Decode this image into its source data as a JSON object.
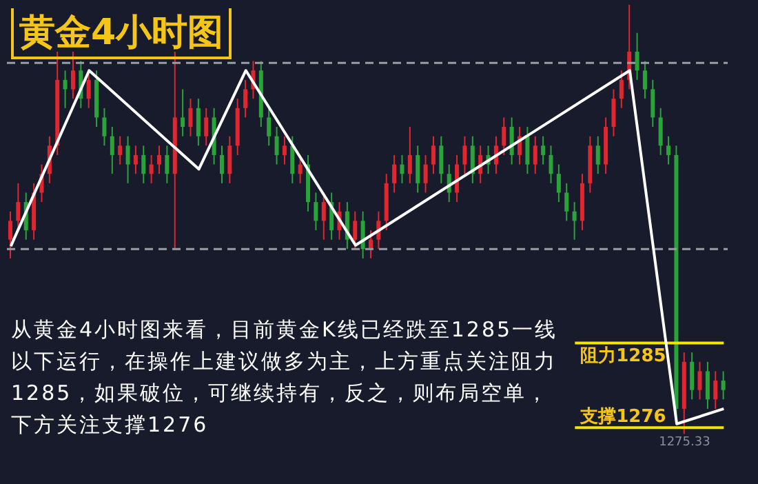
{
  "chart_data": {
    "type": "candlestick",
    "title": "黄金4小时图",
    "categories": [
      null,
      null,
      null,
      null,
      null,
      null,
      null,
      null,
      null,
      null,
      null,
      null,
      null,
      null,
      null,
      null,
      null,
      null,
      null,
      null,
      null,
      null,
      null,
      null,
      null,
      null,
      null,
      null,
      null,
      null,
      null,
      null,
      null,
      null,
      null,
      null,
      null,
      null,
      null,
      null,
      null,
      null,
      null,
      null,
      null,
      null,
      null,
      null,
      null,
      null,
      null,
      null,
      null,
      null,
      null,
      null,
      null,
      null,
      null,
      null,
      null,
      null,
      null,
      null,
      null,
      null,
      null,
      null,
      null,
      null,
      null,
      null,
      null,
      null,
      null,
      null,
      null,
      null,
      null,
      null,
      null,
      null,
      null,
      null,
      null,
      null,
      null,
      null,
      null,
      null,
      null,
      null
    ],
    "ohlc": [
      [
        1296,
        1299,
        1294,
        1298
      ],
      [
        1298,
        1302,
        1297,
        1300
      ],
      [
        1300,
        1301,
        1296,
        1297
      ],
      [
        1297,
        1302,
        1296,
        1301
      ],
      [
        1301,
        1304,
        1300,
        1303
      ],
      [
        1303,
        1307,
        1302,
        1306
      ],
      [
        1306,
        1316,
        1305,
        1313
      ],
      [
        1313,
        1314,
        1310,
        1312
      ],
      [
        1312,
        1316,
        1311,
        1314
      ],
      [
        1314,
        1315,
        1310,
        1311
      ],
      [
        1311,
        1314,
        1310,
        1313
      ],
      [
        1313,
        1314,
        1308,
        1309
      ],
      [
        1309,
        1310,
        1306,
        1307
      ],
      [
        1307,
        1308,
        1303,
        1305
      ],
      [
        1305,
        1307,
        1304,
        1306
      ],
      [
        1306,
        1307,
        1302,
        1304
      ],
      [
        1304,
        1306,
        1303,
        1305
      ],
      [
        1305,
        1306,
        1302,
        1303
      ],
      [
        1303,
        1305,
        1302,
        1304
      ],
      [
        1304,
        1306,
        1303,
        1305
      ],
      [
        1305,
        1306,
        1302,
        1303
      ],
      [
        1303,
        1316,
        1295,
        1309
      ],
      [
        1309,
        1312,
        1307,
        1308
      ],
      [
        1308,
        1311,
        1307,
        1310
      ],
      [
        1310,
        1311,
        1306,
        1307
      ],
      [
        1307,
        1310,
        1306,
        1309
      ],
      [
        1309,
        1310,
        1304,
        1305
      ],
      [
        1305,
        1306,
        1302,
        1303
      ],
      [
        1303,
        1307,
        1302,
        1306
      ],
      [
        1306,
        1311,
        1305,
        1310
      ],
      [
        1310,
        1313,
        1309,
        1312
      ],
      [
        1312,
        1315,
        1311,
        1314
      ],
      [
        1314,
        1315,
        1308,
        1309
      ],
      [
        1309,
        1310,
        1306,
        1307
      ],
      [
        1307,
        1308,
        1304,
        1305
      ],
      [
        1305,
        1307,
        1304,
        1306
      ],
      [
        1306,
        1307,
        1302,
        1303
      ],
      [
        1303,
        1305,
        1302,
        1304
      ],
      [
        1304,
        1305,
        1299,
        1300
      ],
      [
        1300,
        1301,
        1297,
        1298
      ],
      [
        1298,
        1301,
        1296,
        1300
      ],
      [
        1300,
        1301,
        1296,
        1297
      ],
      [
        1297,
        1300,
        1296,
        1299
      ],
      [
        1299,
        1300,
        1295,
        1296
      ],
      [
        1296,
        1299,
        1295,
        1298
      ],
      [
        1298,
        1299,
        1294,
        1295
      ],
      [
        1295,
        1297,
        1294,
        1296
      ],
      [
        1296,
        1299,
        1295,
        1298
      ],
      [
        1298,
        1303,
        1297,
        1302
      ],
      [
        1302,
        1305,
        1301,
        1304
      ],
      [
        1304,
        1305,
        1302,
        1303
      ],
      [
        1303,
        1308,
        1302,
        1305
      ],
      [
        1305,
        1306,
        1301,
        1302
      ],
      [
        1302,
        1305,
        1301,
        1304
      ],
      [
        1304,
        1307,
        1303,
        1306
      ],
      [
        1306,
        1307,
        1302,
        1303
      ],
      [
        1303,
        1304,
        1300,
        1301
      ],
      [
        1301,
        1305,
        1300,
        1304
      ],
      [
        1304,
        1307,
        1303,
        1306
      ],
      [
        1306,
        1307,
        1302,
        1303
      ],
      [
        1303,
        1306,
        1302,
        1305
      ],
      [
        1305,
        1306,
        1303,
        1304
      ],
      [
        1304,
        1307,
        1303,
        1306
      ],
      [
        1306,
        1309,
        1305,
        1308
      ],
      [
        1308,
        1309,
        1304,
        1305
      ],
      [
        1305,
        1308,
        1304,
        1307
      ],
      [
        1307,
        1308,
        1303,
        1304
      ],
      [
        1304,
        1307,
        1303,
        1306
      ],
      [
        1306,
        1307,
        1304,
        1305
      ],
      [
        1305,
        1306,
        1302,
        1303
      ],
      [
        1303,
        1304,
        1300,
        1301
      ],
      [
        1301,
        1302,
        1298,
        1299
      ],
      [
        1299,
        1300,
        1296,
        1298
      ],
      [
        1298,
        1303,
        1297,
        1302
      ],
      [
        1302,
        1307,
        1301,
        1306
      ],
      [
        1306,
        1307,
        1303,
        1304
      ],
      [
        1304,
        1309,
        1303,
        1308
      ],
      [
        1308,
        1312,
        1307,
        1311
      ],
      [
        1311,
        1314,
        1310,
        1313
      ],
      [
        1313,
        1321,
        1312,
        1316
      ],
      [
        1316,
        1318,
        1313,
        1314
      ],
      [
        1314,
        1315,
        1311,
        1312
      ],
      [
        1312,
        1313,
        1308,
        1309
      ],
      [
        1309,
        1310,
        1305,
        1306
      ],
      [
        1306,
        1307,
        1304,
        1305
      ],
      [
        1305,
        1306,
        1277,
        1278
      ],
      [
        1278,
        1284,
        1275.33,
        1283
      ],
      [
        1283,
        1284,
        1279,
        1280
      ],
      [
        1280,
        1283,
        1279,
        1282
      ],
      [
        1282,
        1283,
        1278,
        1279
      ],
      [
        1279,
        1282,
        1278,
        1281
      ],
      [
        1281,
        1282,
        1279,
        1280
      ]
    ],
    "colors": [
      "#e0262e",
      "#e0262e",
      "#2aa33a",
      "#e0262e",
      "#e0262e",
      "#e0262e",
      "#e0262e",
      "#2aa33a",
      "#e0262e",
      "#2aa33a",
      "#e0262e",
      "#2aa33a",
      "#2aa33a",
      "#2aa33a",
      "#e0262e",
      "#2aa33a",
      "#e0262e",
      "#2aa33a",
      "#e0262e",
      "#e0262e",
      "#2aa33a",
      "#e0262e",
      "#2aa33a",
      "#e0262e",
      "#2aa33a",
      "#e0262e",
      "#2aa33a",
      "#2aa33a",
      "#e0262e",
      "#e0262e",
      "#e0262e",
      "#e0262e",
      "#2aa33a",
      "#2aa33a",
      "#2aa33a",
      "#e0262e",
      "#2aa33a",
      "#e0262e",
      "#2aa33a",
      "#2aa33a",
      "#e0262e",
      "#2aa33a",
      "#e0262e",
      "#2aa33a",
      "#e0262e",
      "#2aa33a",
      "#e0262e",
      "#e0262e",
      "#e0262e",
      "#e0262e",
      "#2aa33a",
      "#e0262e",
      "#2aa33a",
      "#e0262e",
      "#e0262e",
      "#2aa33a",
      "#2aa33a",
      "#e0262e",
      "#e0262e",
      "#2aa33a",
      "#e0262e",
      "#2aa33a",
      "#e0262e",
      "#e0262e",
      "#2aa33a",
      "#e0262e",
      "#2aa33a",
      "#e0262e",
      "#2aa33a",
      "#2aa33a",
      "#2aa33a",
      "#2aa33a",
      "#2aa33a",
      "#e0262e",
      "#e0262e",
      "#2aa33a",
      "#e0262e",
      "#e0262e",
      "#e0262e",
      "#e0262e",
      "#2aa33a",
      "#2aa33a",
      "#2aa33a",
      "#2aa33a",
      "#2aa33a",
      "#2aa33a",
      "#e0262e",
      "#2aa33a",
      "#e0262e",
      "#2aa33a",
      "#e0262e",
      "#2aa33a"
    ],
    "series": [
      {
        "type": "line",
        "color": "#ffffff",
        "values": [
          1295.3,
          null,
          null,
          null,
          null,
          null,
          null,
          null,
          null,
          null,
          1314,
          null,
          null,
          null,
          null,
          null,
          null,
          null,
          null,
          null,
          null,
          null,
          null,
          null,
          1303.5,
          null,
          null,
          null,
          null,
          null,
          1314,
          null,
          null,
          null,
          null,
          null,
          null,
          null,
          null,
          null,
          null,
          null,
          null,
          null,
          1295.4,
          null,
          null,
          null,
          null,
          null,
          null,
          null,
          null,
          null,
          null,
          null,
          null,
          null,
          null,
          null,
          null,
          null,
          null,
          null,
          null,
          null,
          null,
          null,
          null,
          null,
          null,
          null,
          null,
          null,
          null,
          null,
          null,
          null,
          null,
          1314,
          null,
          null,
          null,
          null,
          null,
          1276.4,
          null,
          null,
          null,
          null,
          null,
          1278
        ]
      }
    ],
    "ylim": [
      1270,
      1321.5
    ],
    "tick_labels": false,
    "grid": false,
    "legend": false,
    "ref_lines": [
      {
        "axis": "y",
        "value": 1314.8,
        "label": null,
        "color": "#9a9ca4",
        "line_style": "dashed"
      },
      {
        "axis": "y",
        "value": 1295,
        "label": null,
        "color": "#9a9ca4",
        "line_style": "dashed"
      },
      {
        "axis": "y",
        "value": 1285,
        "label": "阻力1285",
        "color": "#f2e600",
        "line_style": "solid"
      },
      {
        "axis": "y",
        "value": 1276,
        "label": "支撑1276",
        "color": "#f2e600",
        "line_style": "solid"
      }
    ],
    "annotations": [
      "从黄金4小时图来看，目前黄金K线已经跌至1285一线以下运行，在操作上建议做多为主，上方重点关注阻力1285，如果破位，可继续持有，反之，则布局空单，下方关注支撑1276",
      {
        "text": "1275.33",
        "y": 1275.33
      }
    ]
  }
}
